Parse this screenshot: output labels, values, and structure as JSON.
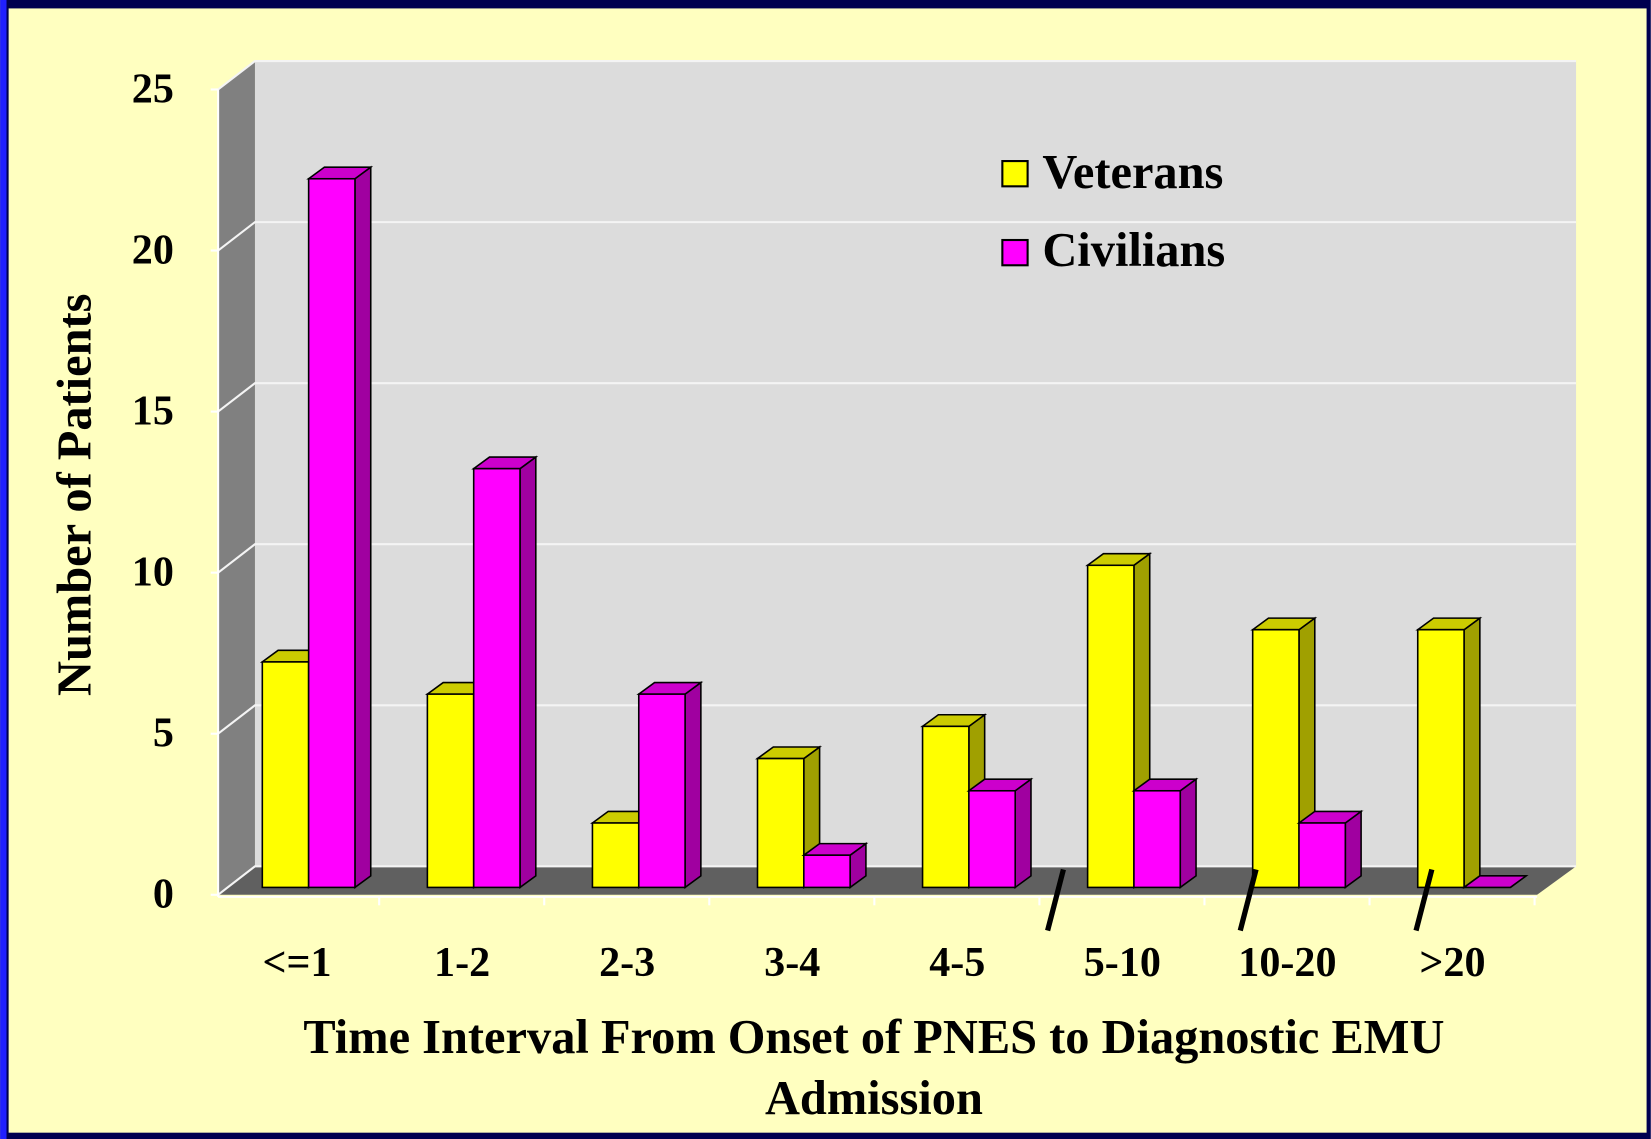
{
  "chart_data": {
    "type": "bar3d",
    "categories": [
      "<=1",
      "1-2",
      "2-3",
      "3-4",
      "4-5",
      "5-10",
      "10-20",
      ">20"
    ],
    "series": [
      {
        "name": "Veterans",
        "color": "#ffff00",
        "values": [
          7,
          6,
          2,
          4,
          5,
          10,
          8,
          8
        ]
      },
      {
        "name": "Civilians",
        "color": "#ff00ff",
        "values": [
          22,
          13,
          6,
          1,
          3,
          3,
          2,
          0
        ]
      }
    ],
    "ylim": [
      0,
      25
    ],
    "yticks": [
      0,
      5,
      10,
      15,
      20,
      25
    ],
    "grid": true,
    "ylabel": "Number of Patients",
    "xlabel": "Time Interval From Onset of PNES to Diagnostic EMU Admission",
    "legend": "top-right"
  }
}
